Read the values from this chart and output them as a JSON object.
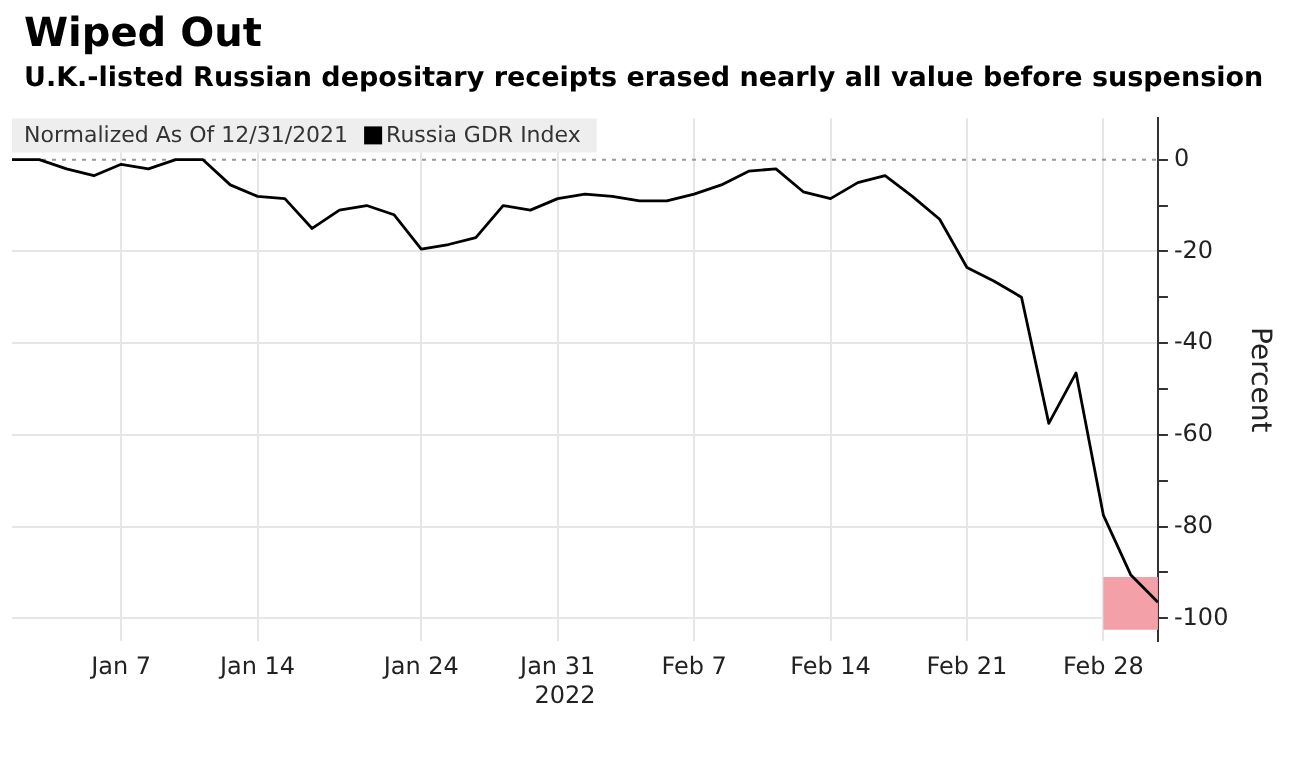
{
  "chart_data": {
    "type": "line",
    "title": "Wiped Out",
    "subtitle": "U.K.-listed Russian depositary receipts erased nearly all value before suspension",
    "categories": [
      null,
      null,
      null,
      null,
      "Jan 7",
      null,
      null,
      null,
      null,
      "Jan 14",
      null,
      null,
      null,
      null,
      null,
      "Jan 24",
      null,
      null,
      null,
      null,
      "Jan 31",
      null,
      null,
      null,
      null,
      "Feb 7",
      null,
      null,
      null,
      null,
      "Feb 14",
      null,
      null,
      null,
      null,
      "Feb 21",
      null,
      null,
      null,
      null,
      "Feb 28",
      null,
      null
    ],
    "series": [
      {
        "name": "Russia GDR Index",
        "color": "#000000",
        "values": [
          0,
          0,
          -2,
          -3.5,
          -1,
          -2,
          0,
          0,
          -5.5,
          -8,
          -8.5,
          -15,
          -11,
          -10,
          -12,
          -19.5,
          -18.5,
          -17,
          -10,
          -11,
          -8.5,
          -7.5,
          -8,
          -9,
          -9,
          -7.5,
          -5.5,
          -2.5,
          -2,
          -7,
          -8.5,
          -5,
          -3.5,
          -8,
          -13,
          -23.5,
          -26.5,
          -30,
          -57.5,
          -46.5,
          -77.5,
          -90.5,
          -96.5
        ]
      }
    ],
    "ylabel": "Percent",
    "legend_title": "Normalized As Of 12/31/2021",
    "legend": "top left",
    "ylim": [
      -105,
      9
    ],
    "yticks": [
      {
        "value": -100,
        "label": "-100"
      },
      {
        "value": -90,
        "label": null
      },
      {
        "value": -80,
        "label": "-80"
      },
      {
        "value": -70,
        "label": null
      },
      {
        "value": -60,
        "label": "-60"
      },
      {
        "value": -50,
        "label": null
      },
      {
        "value": -40,
        "label": "-40"
      },
      {
        "value": -30,
        "label": null
      },
      {
        "value": -20,
        "label": "-20"
      },
      {
        "value": -10,
        "label": null
      },
      0
    ],
    "grid": true,
    "marker": "none",
    "line_style": "solid",
    "bands": [
      {
        "axis": "y",
        "from": -102.5,
        "to": -91,
        "color": "#f4a0a8"
      }
    ],
    "ref_lines": [
      {
        "axis": "y",
        "value": 0,
        "color": "#999999",
        "line_style": "dotted"
      }
    ],
    "annotations": [
      "2022"
    ]
  }
}
